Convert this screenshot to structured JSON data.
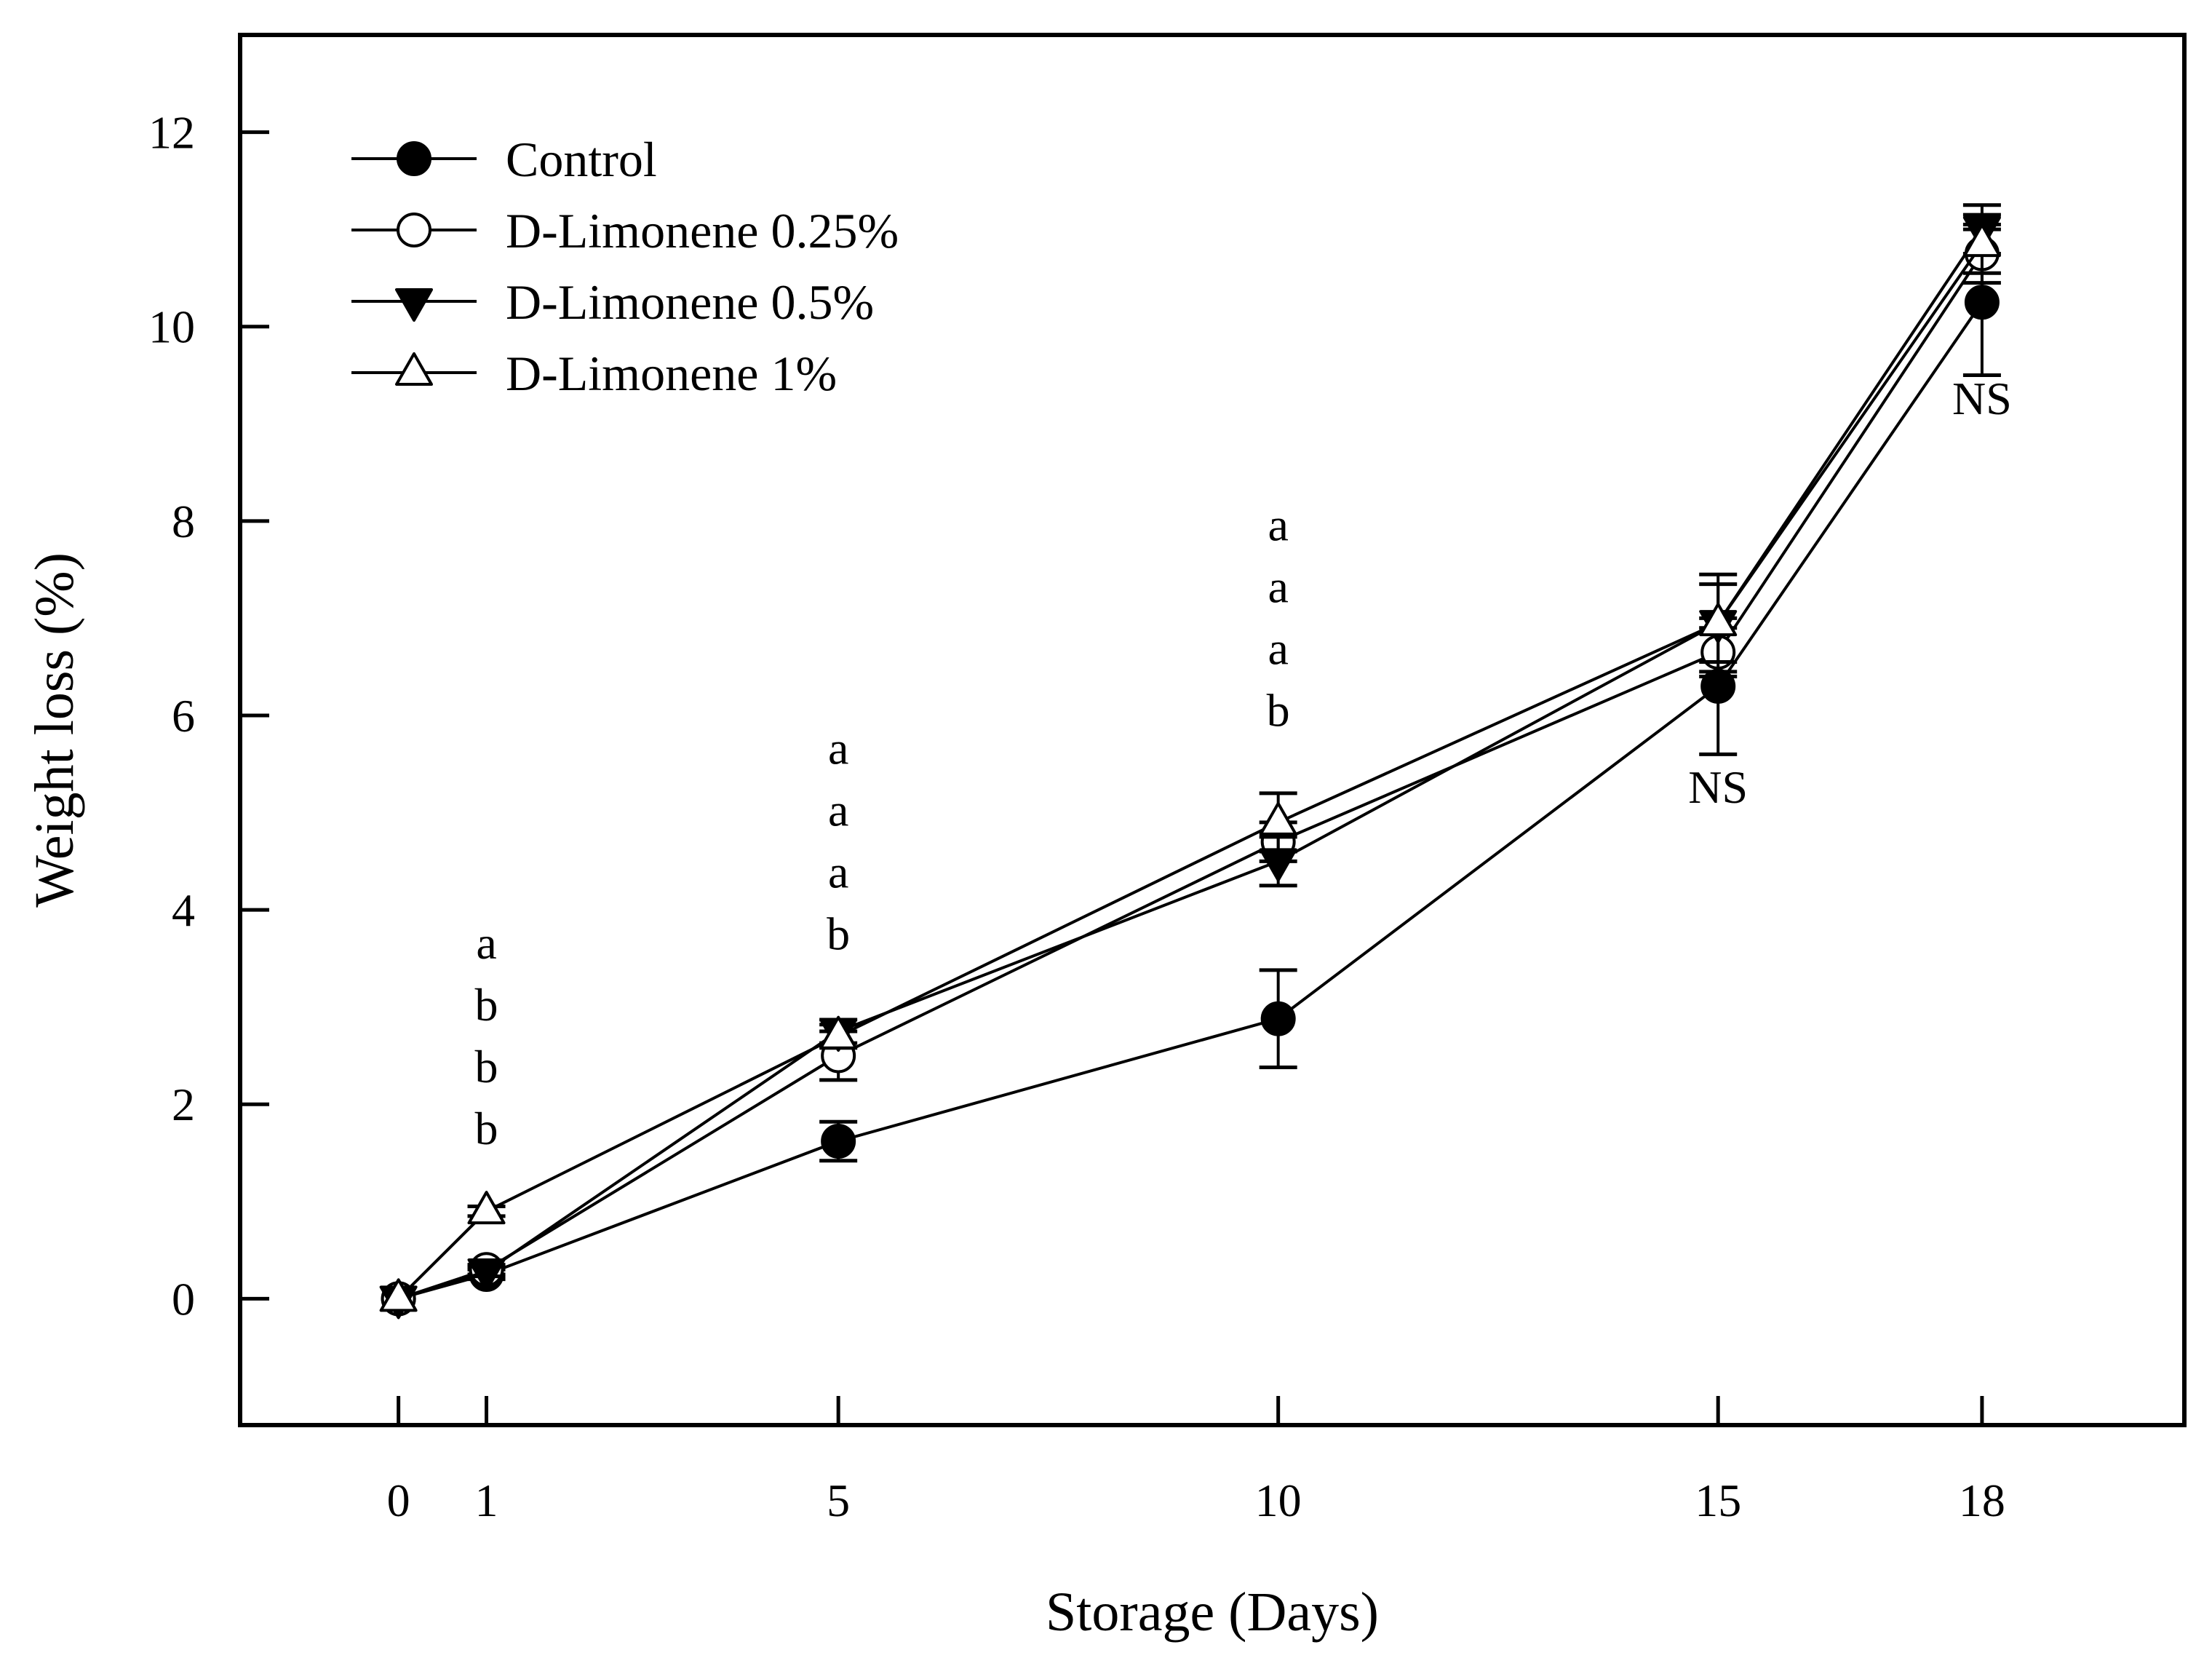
{
  "chart_data": {
    "type": "line",
    "title": "",
    "xlabel": "Storage (Days)",
    "ylabel": "Weight loss (%)",
    "x": [
      0,
      1,
      5,
      10,
      15,
      18
    ],
    "x_tick_labels": [
      "0",
      "1",
      "5",
      "10",
      "15",
      "18"
    ],
    "y_ticks": [
      0,
      2,
      4,
      6,
      8,
      10,
      12
    ],
    "y_tick_labels": [
      "0",
      "2",
      "4",
      "6",
      "8",
      "10",
      "12"
    ],
    "xlim": [
      -1.8,
      20.3
    ],
    "ylim": [
      -1.3,
      13.0
    ],
    "grid": false,
    "legend_position": "top-left",
    "series": [
      {
        "name": "Control",
        "marker": "filled-circle",
        "values": [
          0,
          0.25,
          1.62,
          2.88,
          6.3,
          10.25
        ],
        "errors": [
          0,
          0.05,
          0.2,
          0.5,
          0.7,
          0.75
        ]
      },
      {
        "name": "D-Limonene 0.25%",
        "marker": "open-circle",
        "values": [
          0,
          0.3,
          2.5,
          4.7,
          6.65,
          10.75
        ],
        "errors": [
          0,
          0.05,
          0.25,
          0.2,
          0.25,
          0.3
        ]
      },
      {
        "name": "D-Limonene 0.5%",
        "marker": "filled-triangle-down",
        "values": [
          0,
          0.28,
          2.75,
          4.5,
          6.95,
          11.0
        ],
        "errors": [
          0,
          0.05,
          0.12,
          0.25,
          0.5,
          0.25
        ]
      },
      {
        "name": "D-Limonene 1%",
        "marker": "open-triangle-up",
        "values": [
          0,
          0.9,
          2.7,
          4.9,
          6.95,
          10.85
        ],
        "errors": [
          0,
          0.05,
          0.12,
          0.3,
          0.4,
          0.3
        ]
      }
    ],
    "annotations": [
      {
        "x": 1,
        "y_top": 3.5,
        "lines": [
          "a",
          "b",
          "b",
          "b"
        ]
      },
      {
        "x": 5,
        "y_top": 5.5,
        "lines": [
          "a",
          "a",
          "a",
          "b"
        ]
      },
      {
        "x": 10,
        "y_top": 7.8,
        "lines": [
          "a",
          "a",
          "a",
          "b"
        ]
      },
      {
        "x": 15,
        "y_top": 5.1,
        "lines": [
          "NS"
        ]
      },
      {
        "x": 18,
        "y_top": 9.1,
        "lines": [
          "NS"
        ]
      }
    ]
  }
}
